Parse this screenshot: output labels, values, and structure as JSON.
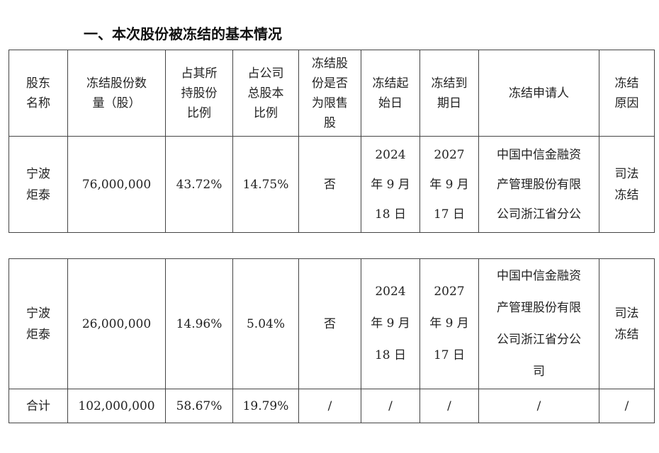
{
  "section_title": "一、本次股份被冻结的基本情况",
  "headers": [
    [
      "股东",
      "名称"
    ],
    [
      "冻结股份数",
      "量（股）"
    ],
    [
      "占其所",
      "持股份",
      "比例"
    ],
    [
      "占公司",
      "总股本",
      "比例"
    ],
    [
      "冻结股",
      "份是否",
      "为限售",
      "股"
    ],
    [
      "冻结起",
      "始日"
    ],
    [
      "冻结到",
      "期日"
    ],
    [
      "冻结申请人"
    ],
    [
      "冻结",
      "原因"
    ]
  ],
  "row1": {
    "holder": [
      "宁波",
      "炬泰"
    ],
    "shares": "76,000,000",
    "pct_held": "43.72%",
    "pct_total": "14.75%",
    "restricted": "否",
    "start": [
      "2024",
      "年 9 月",
      "18 日"
    ],
    "end": [
      "2027",
      "年 9 月",
      "17 日"
    ],
    "applicant": [
      "中国中信金融资",
      "产管理股份有限",
      "公司浙江省分公"
    ],
    "reason": [
      "司法",
      "冻结"
    ]
  },
  "row2": {
    "holder": [
      "宁波",
      "炬泰"
    ],
    "shares": "26,000,000",
    "pct_held": "14.96%",
    "pct_total": "5.04%",
    "restricted": "否",
    "start": [
      "2024",
      "年 9 月",
      "18 日"
    ],
    "end": [
      "2027",
      "年 9 月",
      "17 日"
    ],
    "applicant": [
      "中国中信金融资",
      "产管理股份有限",
      "公司浙江省分公",
      "司"
    ],
    "reason": [
      "司法",
      "冻结"
    ]
  },
  "total": {
    "label": "合计",
    "shares": "102,000,000",
    "pct_held": "58.67%",
    "pct_total": "19.79%",
    "restricted": "/",
    "start": "/",
    "end": "/",
    "applicant": "/",
    "reason": "/"
  }
}
